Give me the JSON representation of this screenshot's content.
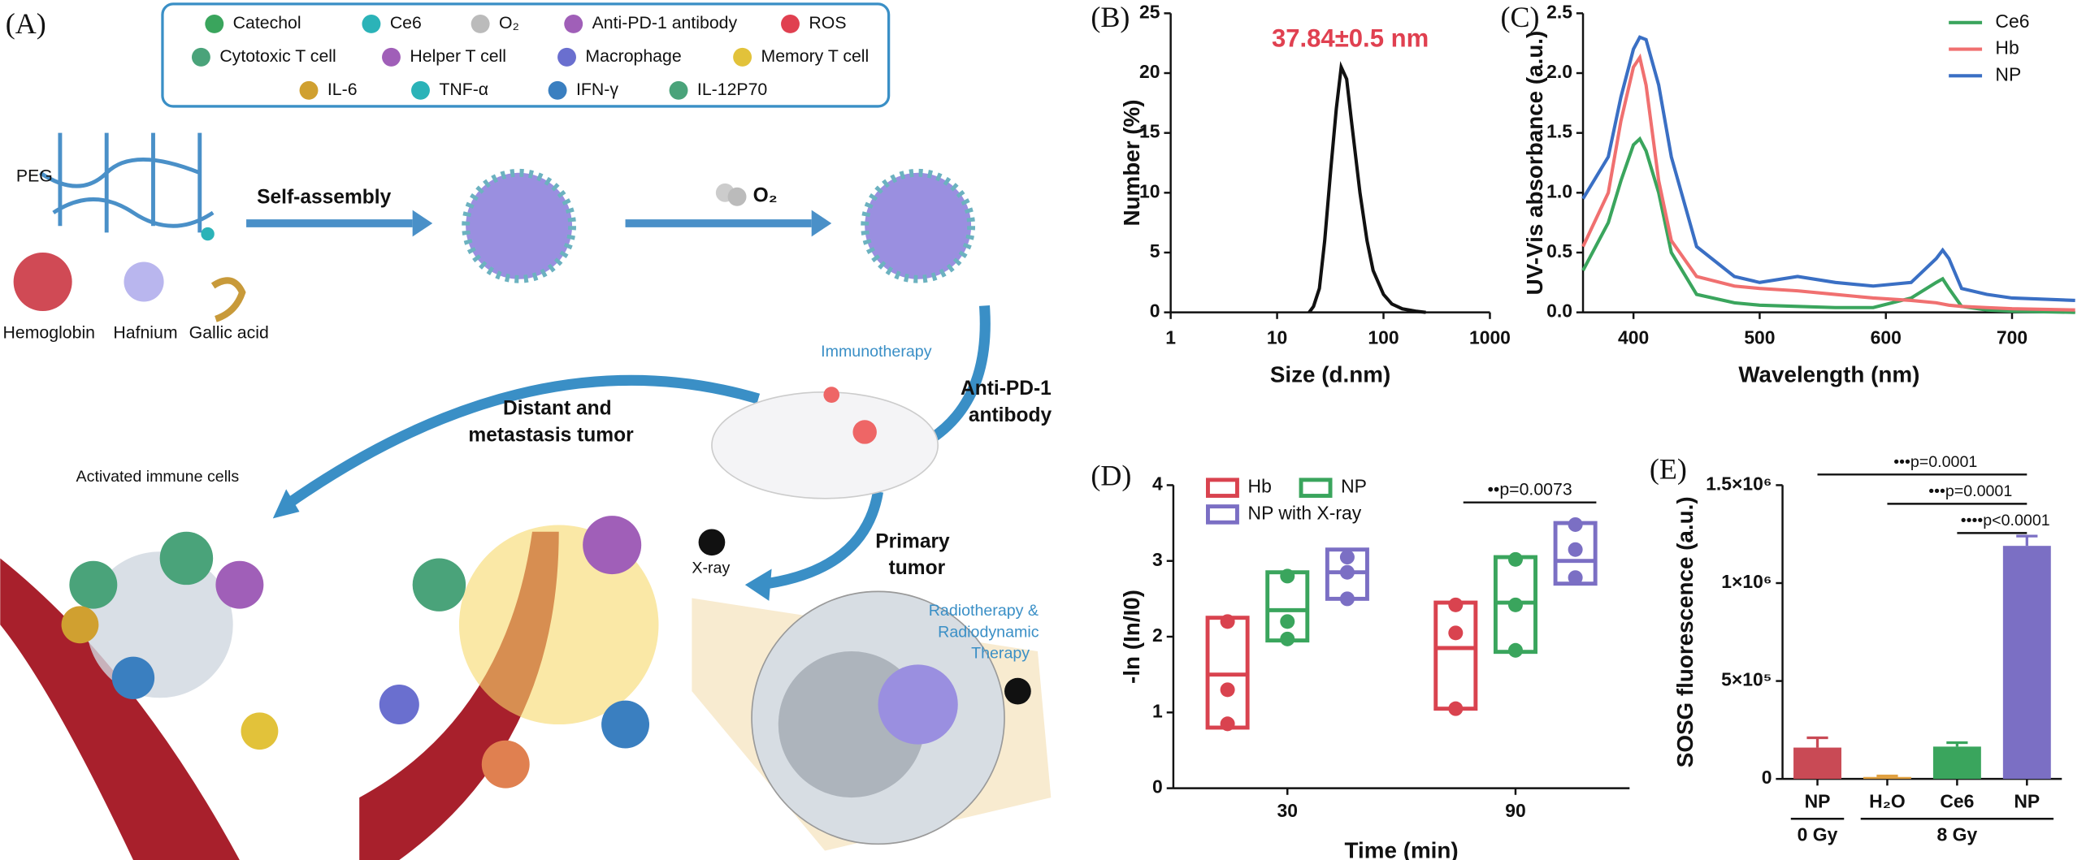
{
  "figure_a": {
    "label": "(A)",
    "legend": [
      "Catechol",
      "Ce6",
      "O₂",
      "Anti-PD-1 antibody",
      "ROS",
      "Cytotoxic T cell",
      "Helper T cell",
      "Macrophage",
      "Memory T cell",
      "IL-6",
      "TNF-α",
      "IFN-γ",
      "IL-12P70"
    ],
    "peg": "PEG",
    "components": [
      "Hemoglobin",
      "Hafnium",
      "Gallic acid"
    ],
    "step1": "Self-assembly",
    "step2": "O₂",
    "immunotherapy": "Immunotherapy",
    "antibody": [
      "Anti-PD-1",
      "antibody"
    ],
    "distant": [
      "Distant and",
      "metastasis tumor"
    ],
    "activated": "Activated immune cells",
    "xray": "X-ray",
    "primary": [
      "Primary",
      "tumor"
    ],
    "therapy": [
      "Radiotherapy &",
      "Radiodynamic",
      "Therapy"
    ]
  },
  "chart_data": [
    {
      "type": "line",
      "label": "(B)",
      "annotation": "37.84±0.5 nm",
      "xlabel": "Size (d.nm)",
      "ylabel": "Number (%)",
      "xscale": "log",
      "xlim": [
        1,
        1000
      ],
      "xticks": [
        1,
        10,
        100,
        1000
      ],
      "ylim": [
        0,
        25
      ],
      "yticks": [
        0,
        5,
        10,
        15,
        20,
        25
      ],
      "x": [
        20,
        22,
        25,
        28,
        32,
        36,
        40,
        45,
        50,
        60,
        70,
        80,
        100,
        120,
        150,
        200,
        250
      ],
      "values": [
        0,
        0.5,
        2,
        6,
        12,
        17,
        20.5,
        19.5,
        16,
        10,
        6,
        3.5,
        1.5,
        0.7,
        0.3,
        0.1,
        0
      ],
      "color": "#111111"
    },
    {
      "type": "line",
      "label": "(C)",
      "xlabel": "Wavelength (nm)",
      "ylabel": "UV-Vis absorbance (a.u.)",
      "xlim": [
        360,
        750
      ],
      "xticks": [
        400,
        500,
        600,
        700
      ],
      "ylim": [
        0,
        2.5
      ],
      "yticks": [
        {
          "value": 0,
          "label": "0.0"
        },
        0.5,
        {
          "value": 1,
          "label": "1.0"
        },
        1.5,
        {
          "value": 2,
          "label": "2.0"
        },
        2.5
      ],
      "x": [
        360,
        380,
        390,
        400,
        405,
        410,
        420,
        430,
        450,
        480,
        500,
        530,
        560,
        590,
        620,
        640,
        645,
        650,
        660,
        680,
        700,
        750
      ],
      "series": [
        {
          "name": "Ce6",
          "color": "#3aa55d",
          "values": [
            0.35,
            0.75,
            1.1,
            1.4,
            1.45,
            1.35,
            1.0,
            0.5,
            0.15,
            0.08,
            0.06,
            0.05,
            0.04,
            0.04,
            0.12,
            0.25,
            0.28,
            0.2,
            0.05,
            0.02,
            0.01,
            0.0
          ]
        },
        {
          "name": "Hb",
          "color": "#f07070",
          "values": [
            0.55,
            1.0,
            1.6,
            2.05,
            2.13,
            1.9,
            1.1,
            0.6,
            0.3,
            0.22,
            0.2,
            0.18,
            0.15,
            0.12,
            0.1,
            0.08,
            0.07,
            0.06,
            0.05,
            0.04,
            0.03,
            0.02
          ]
        },
        {
          "name": "NP",
          "color": "#3a6fc4",
          "values": [
            0.95,
            1.3,
            1.8,
            2.2,
            2.3,
            2.28,
            1.9,
            1.3,
            0.55,
            0.3,
            0.25,
            0.3,
            0.25,
            0.22,
            0.25,
            0.45,
            0.52,
            0.45,
            0.2,
            0.15,
            0.12,
            0.1
          ]
        }
      ]
    },
    {
      "type": "box",
      "label": "(D)",
      "xlabel": "Time (min)",
      "ylabel": "-ln (In/I0)",
      "annotation": "••p=0.0073",
      "categories": [
        "30",
        "90"
      ],
      "ylim": [
        0,
        4
      ],
      "yticks": [
        0,
        1,
        2,
        3,
        4
      ],
      "series": [
        {
          "name": "Hb",
          "color": "#d9434f",
          "box_low": [
            0.8,
            1.05
          ],
          "median": [
            1.5,
            1.85
          ],
          "box_high": [
            2.25,
            2.45
          ],
          "points": [
            [
              2.2,
              1.3,
              0.85
            ],
            [
              2.42,
              2.05,
              1.05
            ]
          ]
        },
        {
          "name": "NP",
          "color": "#3aa55d",
          "box_low": [
            1.95,
            1.8
          ],
          "median": [
            2.35,
            2.45
          ],
          "box_high": [
            2.85,
            3.05
          ],
          "points": [
            [
              2.8,
              2.2,
              1.97
            ],
            [
              3.02,
              2.42,
              1.82
            ]
          ]
        },
        {
          "name": "NP with X-ray",
          "color": "#7b6fc4",
          "box_low": [
            2.5,
            2.7
          ],
          "median": [
            2.85,
            3.0
          ],
          "box_high": [
            3.15,
            3.5
          ],
          "points": [
            [
              3.05,
              2.85,
              2.5
            ],
            [
              3.48,
              3.15,
              2.78
            ]
          ]
        }
      ]
    },
    {
      "type": "bar",
      "label": "(E)",
      "ylabel": "SOSG fluorescence (a.u.)",
      "categories": [
        "NP",
        "H₂O",
        "Ce6",
        "NP"
      ],
      "groups": [
        "0 Gy",
        "8 Gy"
      ],
      "values": [
        160000,
        10000,
        165000,
        1190000
      ],
      "errors": [
        50000,
        5000,
        20000,
        50000
      ],
      "colors": [
        "#c94a55",
        "#e0a040",
        "#3aa55d",
        "#7b6fc4"
      ],
      "ylim": [
        0,
        1500000
      ],
      "yticks": [
        0,
        {
          "value": 500000,
          "label": "5×10⁵"
        },
        {
          "value": 1000000,
          "label": "1×10⁶"
        },
        {
          "value": 1500000,
          "label": "1.5×10⁶"
        }
      ],
      "annotations": [
        "•••p=0.0001",
        "•••p=0.0001",
        "••••p<0.0001"
      ]
    }
  ]
}
